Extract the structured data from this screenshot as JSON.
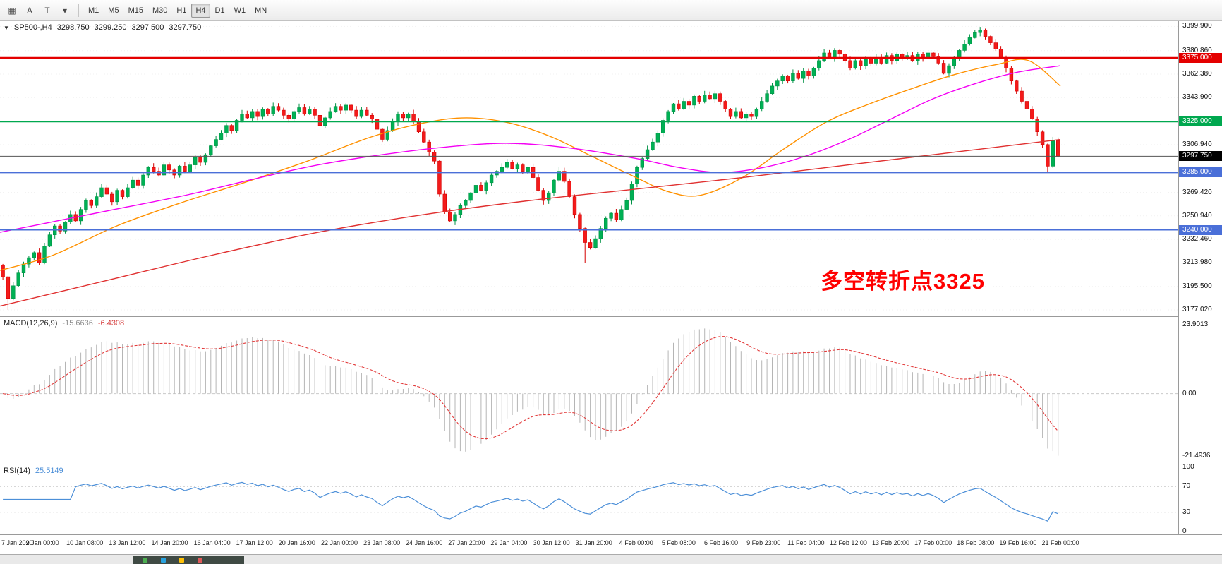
{
  "toolbar": {
    "tools": [
      {
        "name": "chart-window-icon",
        "glyph": "▦"
      },
      {
        "name": "text-tool-icon",
        "glyph": "A"
      },
      {
        "name": "trendline-tool-icon",
        "glyph": "T"
      },
      {
        "name": "objects-dropdown-icon",
        "glyph": "▾"
      }
    ],
    "timeframes": [
      "M1",
      "M5",
      "M15",
      "M30",
      "H1",
      "H4",
      "D1",
      "W1",
      "MN"
    ],
    "active_timeframe": "H4"
  },
  "main_chart": {
    "title_symbol": "SP500-,H4",
    "ohlc": {
      "open": "3298.750",
      "high": "3299.250",
      "low": "3297.500",
      "close": "3297.750"
    },
    "annotation": {
      "text": "多空转折点3325",
      "color": "#ff0000"
    },
    "price_axis": {
      "min": 3172,
      "max": 3404,
      "ticks": [
        {
          "price": 3399.9,
          "label": "3399.900"
        },
        {
          "price": 3380.86,
          "label": "3380.860"
        },
        {
          "price": 3362.38,
          "label": "3362.380"
        },
        {
          "price": 3343.9,
          "label": "3343.900"
        },
        {
          "price": 3306.94,
          "label": "3306.940"
        },
        {
          "price": 3269.42,
          "label": "3269.420"
        },
        {
          "price": 3250.94,
          "label": "3250.940"
        },
        {
          "price": 3232.46,
          "label": "3232.460"
        },
        {
          "price": 3213.98,
          "label": "3213.980"
        },
        {
          "price": 3195.5,
          "label": "3195.500"
        },
        {
          "price": 3177.02,
          "label": "3177.020"
        }
      ]
    }
  },
  "chart_data": {
    "type": "candlestick",
    "symbol": "SP500-",
    "timeframe": "H4",
    "open_first": 3212,
    "closes": [
      3203,
      3186,
      3196,
      3206,
      3213,
      3218,
      3222,
      3214,
      3227,
      3236,
      3243,
      3239,
      3246,
      3252,
      3247,
      3256,
      3263,
      3259,
      3266,
      3273,
      3268,
      3262,
      3271,
      3266,
      3273,
      3279,
      3275,
      3283,
      3289,
      3286,
      3283,
      3291,
      3287,
      3283,
      3290,
      3286,
      3291,
      3297,
      3293,
      3299,
      3306,
      3311,
      3316,
      3322,
      3318,
      3326,
      3331,
      3328,
      3333,
      3329,
      3335,
      3331,
      3337,
      3334,
      3330,
      3327,
      3333,
      3336,
      3331,
      3335,
      3330,
      3322,
      3328,
      3333,
      3337,
      3334,
      3338,
      3334,
      3329,
      3334,
      3330,
      3327,
      3319,
      3311,
      3318,
      3325,
      3331,
      3328,
      3331,
      3325,
      3317,
      3309,
      3301,
      3294,
      3268,
      3254,
      3247,
      3252,
      3259,
      3263,
      3269,
      3275,
      3271,
      3277,
      3283,
      3286,
      3289,
      3293,
      3288,
      3291,
      3286,
      3289,
      3281,
      3271,
      3263,
      3269,
      3279,
      3286,
      3278,
      3266,
      3252,
      3241,
      3230,
      3226,
      3233,
      3241,
      3249,
      3253,
      3248,
      3256,
      3263,
      3276,
      3289,
      3296,
      3303,
      3309,
      3316,
      3326,
      3333,
      3339,
      3335,
      3341,
      3338,
      3345,
      3341,
      3346,
      3343,
      3347,
      3341,
      3335,
      3329,
      3333,
      3328,
      3331,
      3329,
      3335,
      3341,
      3347,
      3353,
      3357,
      3361,
      3357,
      3363,
      3359,
      3365,
      3361,
      3367,
      3373,
      3379,
      3375,
      3381,
      3378,
      3373,
      3367,
      3373,
      3369,
      3375,
      3371,
      3375,
      3371,
      3377,
      3373,
      3378,
      3375,
      3377,
      3373,
      3378,
      3375,
      3379,
      3376,
      3371,
      3363,
      3369,
      3375,
      3381,
      3386,
      3391,
      3395,
      3397,
      3392,
      3387,
      3382,
      3375,
      3367,
      3357,
      3349,
      3341,
      3335,
      3327,
      3317,
      3307,
      3290,
      3310,
      3297.75
    ],
    "special_wicks": {
      "1": {
        "low": 3177
      },
      "112": {
        "low": 3214
      },
      "188": {
        "high": 3399.5
      },
      "201": {
        "low": 3285
      }
    },
    "ma_lines": [
      {
        "name": "ma-fast-orange",
        "color": "#ff9100",
        "anchors": [
          [
            0,
            3208
          ],
          [
            0.05,
            3220
          ],
          [
            0.11,
            3243
          ],
          [
            0.17,
            3261
          ],
          [
            0.23,
            3277
          ],
          [
            0.29,
            3294
          ],
          [
            0.35,
            3313
          ],
          [
            0.4,
            3324
          ],
          [
            0.44,
            3328
          ],
          [
            0.48,
            3324
          ],
          [
            0.52,
            3313
          ],
          [
            0.56,
            3297
          ],
          [
            0.6,
            3281
          ],
          [
            0.63,
            3270
          ],
          [
            0.66,
            3267
          ],
          [
            0.7,
            3281
          ],
          [
            0.74,
            3304
          ],
          [
            0.78,
            3325
          ],
          [
            0.82,
            3339
          ],
          [
            0.86,
            3351
          ],
          [
            0.9,
            3362
          ],
          [
            0.94,
            3370
          ],
          [
            0.97,
            3373
          ],
          [
            1,
            3353
          ]
        ]
      },
      {
        "name": "ma-medium-magenta",
        "color": "#f400f4",
        "anchors": [
          [
            0,
            3238
          ],
          [
            0.06,
            3248
          ],
          [
            0.12,
            3258
          ],
          [
            0.18,
            3268
          ],
          [
            0.24,
            3280
          ],
          [
            0.3,
            3291
          ],
          [
            0.36,
            3299
          ],
          [
            0.42,
            3305
          ],
          [
            0.48,
            3308
          ],
          [
            0.54,
            3304
          ],
          [
            0.6,
            3296
          ],
          [
            0.64,
            3289
          ],
          [
            0.68,
            3285
          ],
          [
            0.72,
            3289
          ],
          [
            0.76,
            3298
          ],
          [
            0.8,
            3311
          ],
          [
            0.84,
            3327
          ],
          [
            0.88,
            3343
          ],
          [
            0.92,
            3355
          ],
          [
            0.96,
            3364
          ],
          [
            1,
            3369
          ]
        ]
      },
      {
        "name": "ma-slow-red",
        "color": "#e03030",
        "anchors": [
          [
            0,
            3180
          ],
          [
            0.1,
            3200
          ],
          [
            0.2,
            3220
          ],
          [
            0.3,
            3238
          ],
          [
            0.4,
            3252
          ],
          [
            0.5,
            3263
          ],
          [
            0.6,
            3272
          ],
          [
            0.7,
            3281
          ],
          [
            0.8,
            3291
          ],
          [
            0.9,
            3301
          ],
          [
            1,
            3311
          ]
        ]
      }
    ],
    "hlines": [
      {
        "price": 3375,
        "label": "3375.000",
        "color": "#e40000",
        "width": 3
      },
      {
        "price": 3325,
        "label": "3325.000",
        "color": "#00a84f",
        "width": 2
      },
      {
        "price": 3285,
        "label": "3285.000",
        "color": "#4a6fd8",
        "width": 2
      },
      {
        "price": 3240,
        "label": "3240.000",
        "color": "#4a6fd8",
        "width": 2
      }
    ],
    "bid": {
      "price": 3297.75,
      "label": "3297.750",
      "line_color": "#555555",
      "badge_bg": "#000000"
    },
    "colors": {
      "bull": "#00b054",
      "bull_stroke": "#009245",
      "bear": "#f31b1b",
      "bear_stroke": "#d40000",
      "macd_hist": "#b5b5b5",
      "macd_signal": "#e23b3b",
      "rsi": "#4c8fd8"
    },
    "indicators": {
      "macd": {
        "fast": 12,
        "slow": 26,
        "signal": 9,
        "axis_labels": [
          {
            "v": 23.9013,
            "label": "23.9013"
          },
          {
            "v": 0,
            "label": "0.00"
          },
          {
            "v": -21.4936,
            "label": "-21.4936"
          }
        ]
      },
      "rsi": {
        "period": 14,
        "axis_labels": [
          {
            "v": 100,
            "label": "100"
          },
          {
            "v": 70,
            "label": "70"
          },
          {
            "v": 30,
            "label": "30"
          },
          {
            "v": 0,
            "label": "0"
          }
        ],
        "level_lines": [
          70,
          30
        ]
      }
    }
  },
  "macd_panel": {
    "label": "MACD(12,26,9)",
    "value_main": "-15.6636",
    "value_signal": "-6.4308"
  },
  "rsi_panel": {
    "label": "RSI(14)",
    "value": "25.5149"
  },
  "time_axis": {
    "labels": [
      "7 Jan 2020",
      "9 Jan 00:00",
      "10 Jan 08:00",
      "13 Jan 12:00",
      "14 Jan 20:00",
      "16 Jan 04:00",
      "17 Jan 12:00",
      "20 Jan 16:00",
      "22 Jan 00:00",
      "23 Jan 08:00",
      "24 Jan 16:00",
      "27 Jan 20:00",
      "29 Jan 04:00",
      "30 Jan 12:00",
      "31 Jan 20:00",
      "4 Feb 00:00",
      "5 Feb 08:00",
      "6 Feb 16:00",
      "9 Feb 23:00",
      "11 Feb 04:00",
      "12 Feb 12:00",
      "13 Feb 20:00",
      "17 Feb 00:00",
      "18 Feb 08:00",
      "19 Feb 16:00",
      "21 Feb 00:00"
    ]
  }
}
